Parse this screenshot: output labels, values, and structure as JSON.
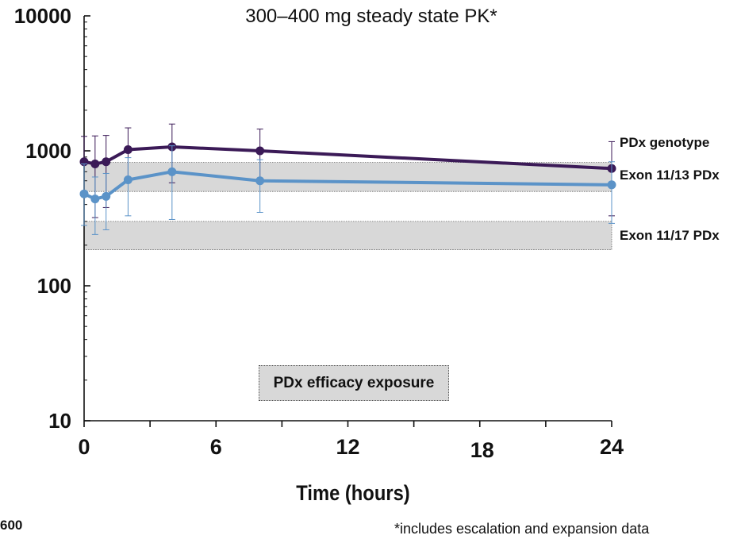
{
  "chart_data": {
    "type": "line",
    "title": "300–400 mg steady state PK*",
    "xlabel": "Time (hours)",
    "ylabel": "",
    "yscale": "log",
    "xlim": [
      0,
      24
    ],
    "ylim": [
      10,
      10000
    ],
    "x_ticks": [
      0,
      6,
      12,
      18,
      24
    ],
    "y_ticks": [
      10,
      100,
      1000,
      10000
    ],
    "grid": false,
    "bands": [
      {
        "label": "Exon 11/13 PDx",
        "low": 500,
        "high": 820
      },
      {
        "label": "Exon 11/17 PDx",
        "low": 185,
        "high": 300
      }
    ],
    "band_header": "PDx genotype",
    "legend_label": "PDx efficacy exposure",
    "series": [
      {
        "color": "#3b1a57",
        "x": [
          0,
          0.5,
          1,
          2,
          4,
          8,
          24
        ],
        "y": [
          830,
          800,
          830,
          1020,
          1070,
          1000,
          740
        ],
        "err_low": [
          460,
          320,
          380,
          600,
          580,
          600,
          330
        ],
        "err_high": [
          1280,
          1290,
          1300,
          1480,
          1580,
          1450,
          1170
        ]
      },
      {
        "color": "#5b93c8",
        "x": [
          0,
          0.5,
          1,
          2,
          4,
          8,
          24
        ],
        "y": [
          480,
          440,
          460,
          610,
          700,
          600,
          560
        ],
        "err_low": [
          280,
          240,
          260,
          330,
          310,
          350,
          290
        ],
        "err_high": [
          800,
          640,
          680,
          890,
          1090,
          860,
          830
        ]
      }
    ]
  },
  "footnote": "*includes escalation and expansion data",
  "corner_text": "600"
}
